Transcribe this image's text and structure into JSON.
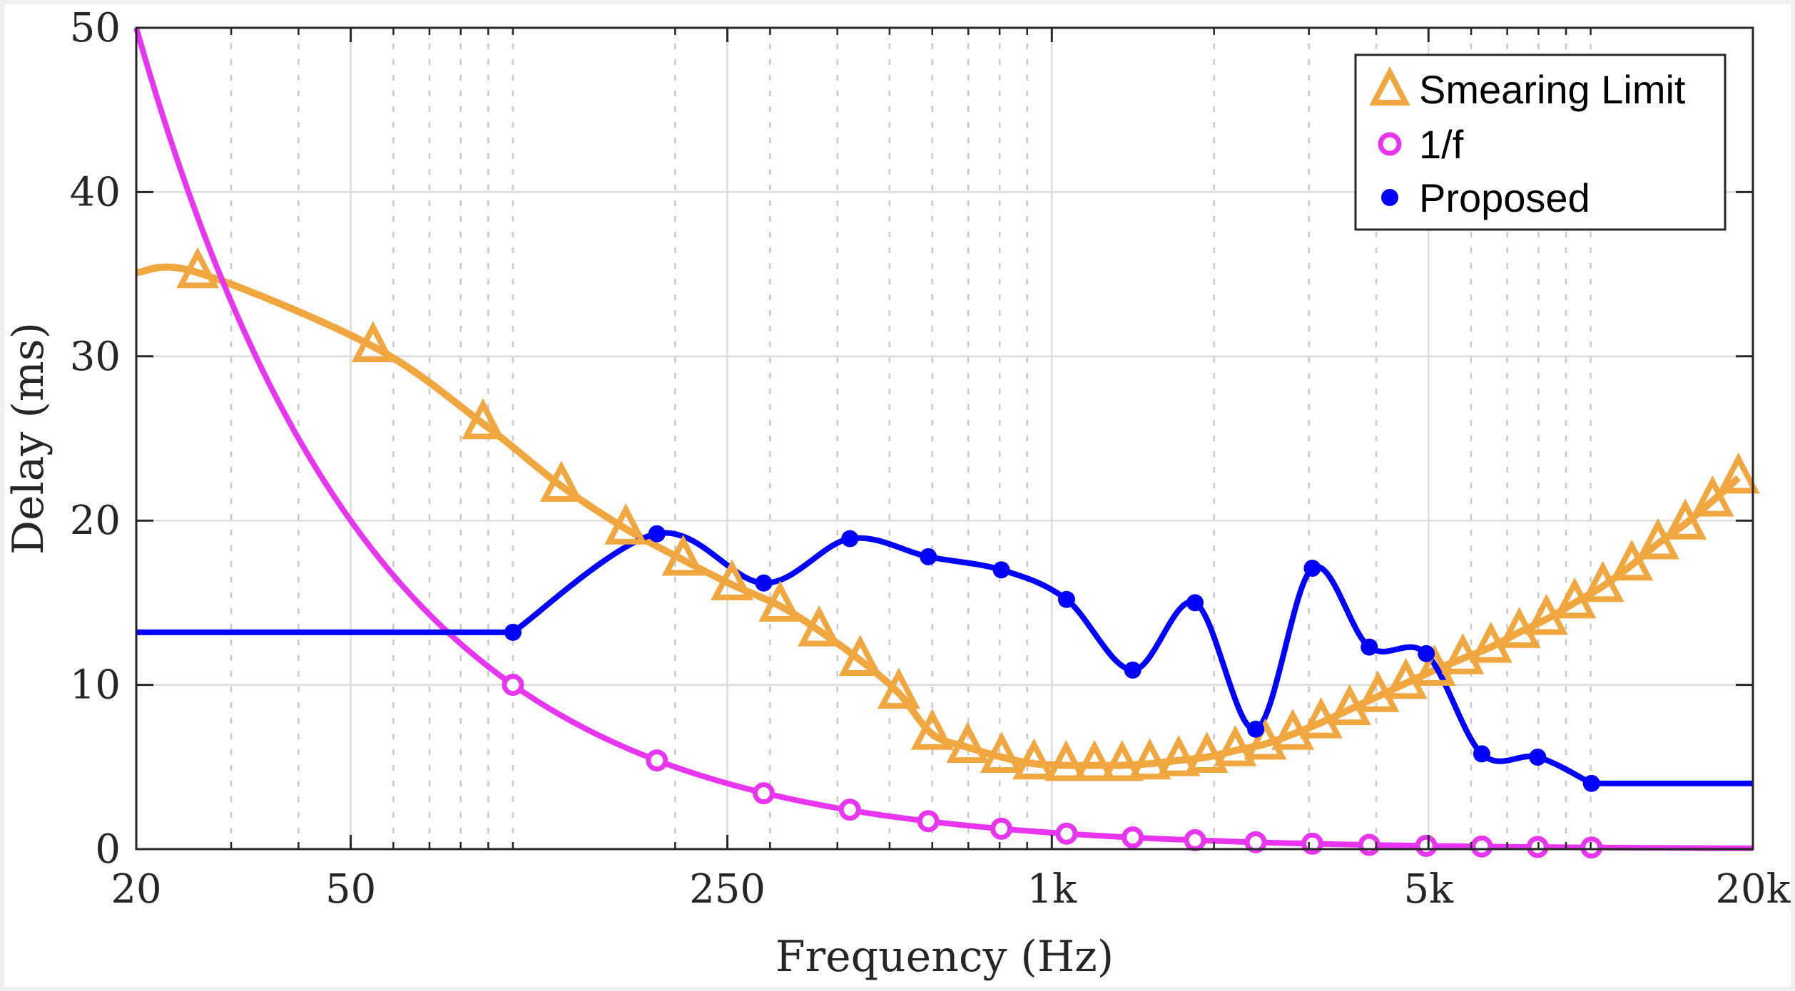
{
  "chart_data": {
    "type": "line",
    "title": "",
    "xlabel": "Frequency (Hz)",
    "ylabel": "Delay (ms)",
    "xscale": "log",
    "xlim": [
      20,
      20000
    ],
    "ylim": [
      0,
      50
    ],
    "grid": true,
    "minor_grid": true,
    "legend_position": "top-right",
    "x_ticks": [
      20,
      50,
      250,
      1000,
      5000,
      20000
    ],
    "x_tick_labels": [
      "20",
      "50",
      "250",
      "1k",
      "5k",
      "20k"
    ],
    "y_ticks": [
      0,
      10,
      20,
      30,
      40,
      50
    ],
    "y_tick_labels": [
      "0",
      "10",
      "20",
      "30",
      "40",
      "50"
    ],
    "series": [
      {
        "name": "Smearing Limit",
        "color": "#f0a73f",
        "marker": "triangle",
        "line_start": [
          20,
          35.1
        ],
        "x": [
          26,
          55,
          88,
          123,
          162,
          207,
          255,
          313,
          370,
          441,
          520,
          600,
          698,
          807,
          927,
          1063,
          1200,
          1350,
          1520,
          1720,
          1940,
          2190,
          2490,
          2800,
          3160,
          3570,
          4030,
          4540,
          5130,
          5790,
          6530,
          7370,
          8280,
          9340,
          10530,
          11920,
          13330,
          14980,
          16830,
          18800
        ],
        "y": [
          35.1,
          30.6,
          25.9,
          22.1,
          19.5,
          17.6,
          16.1,
          14.8,
          13.3,
          11.5,
          9.5,
          7.0,
          6.2,
          5.6,
          5.2,
          5.1,
          5.1,
          5.1,
          5.2,
          5.4,
          5.6,
          6.0,
          6.4,
          7.0,
          7.7,
          8.5,
          9.3,
          10.1,
          10.9,
          11.6,
          12.3,
          13.2,
          14.0,
          15.0,
          16.0,
          17.3,
          18.6,
          19.8,
          21.2,
          22.6
        ]
      },
      {
        "name": "1/f",
        "color": "#e836f0",
        "marker": "circle-open",
        "formula": "1000/f",
        "x": [
          100,
          185,
          292,
          422,
          590,
          806,
          1065,
          1413,
          1844,
          2390,
          3044,
          3882,
          4953,
          6278,
          7972,
          10034
        ],
        "y": [
          10.0,
          5.4,
          3.4,
          2.4,
          1.7,
          1.24,
          0.94,
          0.71,
          0.54,
          0.42,
          0.33,
          0.26,
          0.2,
          0.16,
          0.13,
          0.1
        ]
      },
      {
        "name": "Proposed",
        "color": "#0000ff",
        "marker": "circle-filled",
        "flat_start": 13.2,
        "flat_end": 4.0,
        "x": [
          100,
          185,
          292,
          422,
          590,
          806,
          1065,
          1413,
          1844,
          2390,
          3044,
          3882,
          4953,
          6278,
          7972,
          10034
        ],
        "y": [
          13.2,
          19.2,
          16.2,
          18.9,
          17.8,
          17.0,
          15.2,
          10.9,
          15.0,
          7.3,
          17.1,
          12.3,
          11.9,
          5.8,
          5.6,
          4.0
        ]
      }
    ]
  }
}
